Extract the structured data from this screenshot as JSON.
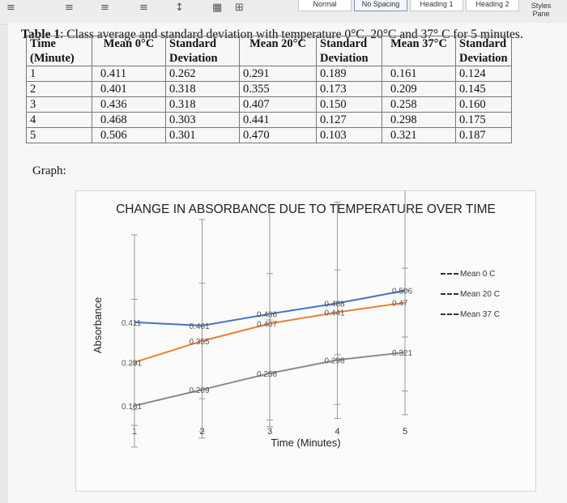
{
  "ribbon": {
    "styles": [
      "Normal",
      "No Spacing",
      "Heading 1",
      "Heading 2"
    ],
    "styles_pane": [
      "Styles",
      "Pane"
    ]
  },
  "document": {
    "caption_bold": "Table 1",
    "caption_rest": ": Class average and standard deviation with temperature 0°C, 20°C and 37° C for 5 minutes.",
    "graph_label": "Graph:",
    "table": {
      "headers": [
        [
          "Time",
          "(Minute)"
        ],
        [
          "Mean 0°C",
          ""
        ],
        [
          "Standard",
          "Deviation"
        ],
        [
          "Mean 20°C",
          ""
        ],
        [
          "Standard",
          "Deviation"
        ],
        [
          "Mean 37°C",
          ""
        ],
        [
          "Standard",
          "Deviation"
        ]
      ],
      "rows": [
        [
          "1",
          "0.411",
          "0.262",
          "0.291",
          "0.189",
          "0.161",
          "0.124"
        ],
        [
          "2",
          "0.401",
          "0.318",
          "0.355",
          "0.173",
          "0.209",
          "0.145"
        ],
        [
          "3",
          "0.436",
          "0.318",
          "0.407",
          "0.150",
          "0.258",
          "0.160"
        ],
        [
          "4",
          "0.468",
          "0.303",
          "0.441",
          "0.127",
          "0.298",
          "0.175"
        ],
        [
          "5",
          "0.506",
          "0.301",
          "0.470",
          "0.103",
          "0.321",
          "0.187"
        ]
      ]
    }
  },
  "chart_data": {
    "type": "line",
    "title": "CHANGE IN ABSORBANCE DUE TO TEMPERATURE OVER TIME",
    "xlabel": "Time (Minutes)",
    "ylabel": "Absorbance",
    "categories": [
      "1",
      "2",
      "3",
      "4",
      "5"
    ],
    "legend_position": "right",
    "series": [
      {
        "name": "Mean 0 C",
        "color": "#4472c4",
        "values": [
          0.411,
          0.401,
          0.436,
          0.468,
          0.506
        ],
        "labels": [
          "0.411",
          "0.401",
          "0.436",
          "0.468",
          "0.506"
        ],
        "error": [
          0.262,
          0.318,
          0.318,
          0.303,
          0.301
        ]
      },
      {
        "name": "Mean 20 C",
        "color": "#ed7d31",
        "values": [
          0.291,
          0.355,
          0.407,
          0.441,
          0.47
        ],
        "labels": [
          "0.291",
          "0.355",
          "0.407",
          "0.441",
          "0.47"
        ],
        "error": [
          0.189,
          0.173,
          0.15,
          0.127,
          0.103
        ]
      },
      {
        "name": "Mean 37 C",
        "color": "#8c8c8c",
        "values": [
          0.161,
          0.209,
          0.258,
          0.298,
          0.321
        ],
        "labels": [
          "0.161",
          "0.209",
          "0.258",
          "0.298",
          "0.321"
        ],
        "error": [
          0.124,
          0.145,
          0.16,
          0.175,
          0.187
        ]
      }
    ],
    "grid": false
  }
}
